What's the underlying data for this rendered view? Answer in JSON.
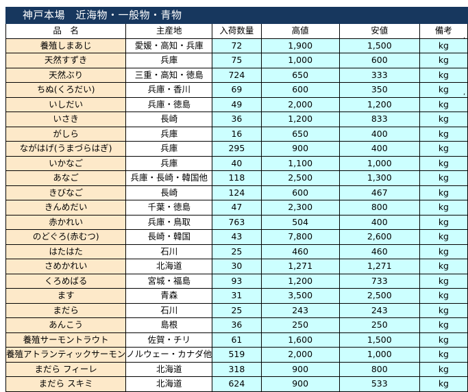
{
  "title": "神戸本場　近海物・一般物・青物",
  "headers": [
    "品　名",
    "主産地",
    "入荷数量",
    "高値",
    "安値",
    "備考"
  ],
  "rows": [
    {
      "name": "養殖しまあじ",
      "origin": "愛媛・高知・兵庫",
      "qty": "72",
      "high": "1,900",
      "low": "1,500",
      "note": "kg"
    },
    {
      "name": "天然すずき",
      "origin": "兵庫",
      "qty": "75",
      "high": "1,000",
      "low": "600",
      "note": "kg"
    },
    {
      "name": "天然ぶり",
      "origin": "三重・高知・徳島",
      "qty": "724",
      "high": "650",
      "low": "333",
      "note": "kg"
    },
    {
      "name": "ちぬ(くろだい)",
      "origin": "兵庫・香川",
      "qty": "69",
      "high": "600",
      "low": "350",
      "note": "kg"
    },
    {
      "name": "いしだい",
      "origin": "兵庫・徳島",
      "qty": "49",
      "high": "2,000",
      "low": "1,200",
      "note": "kg"
    },
    {
      "name": "いさき",
      "origin": "長崎",
      "qty": "36",
      "high": "1,200",
      "low": "833",
      "note": "kg"
    },
    {
      "name": "がしら",
      "origin": "兵庫",
      "qty": "16",
      "high": "650",
      "low": "400",
      "note": "kg"
    },
    {
      "name": "ながはげ(うまづらはぎ)",
      "origin": "兵庫",
      "qty": "295",
      "high": "900",
      "low": "400",
      "note": "kg"
    },
    {
      "name": "いかなご",
      "origin": "兵庫",
      "qty": "40",
      "high": "1,100",
      "low": "1,000",
      "note": "kg"
    },
    {
      "name": "あなご",
      "origin": "兵庫・長崎・韓国他",
      "qty": "118",
      "high": "2,500",
      "low": "1,300",
      "note": "kg"
    },
    {
      "name": "きびなご",
      "origin": "長崎",
      "qty": "124",
      "high": "600",
      "low": "467",
      "note": "kg"
    },
    {
      "name": "きんめだい",
      "origin": "千葉・徳島",
      "qty": "47",
      "high": "2,300",
      "low": "800",
      "note": "kg"
    },
    {
      "name": "赤かれい",
      "origin": "兵庫・鳥取",
      "qty": "763",
      "high": "504",
      "low": "400",
      "note": "kg"
    },
    {
      "name": "のどぐろ(赤むつ)",
      "origin": "長崎・韓国",
      "qty": "43",
      "high": "7,800",
      "low": "2,600",
      "note": "kg"
    },
    {
      "name": "はたはた",
      "origin": "石川",
      "qty": "25",
      "high": "460",
      "low": "460",
      "note": "kg"
    },
    {
      "name": "さめかれい",
      "origin": "北海道",
      "qty": "30",
      "high": "1,271",
      "low": "1,271",
      "note": "kg"
    },
    {
      "name": "くろめばる",
      "origin": "宮城・福島",
      "qty": "93",
      "high": "1,200",
      "low": "733",
      "note": "kg"
    },
    {
      "name": "ます",
      "origin": "青森",
      "qty": "31",
      "high": "3,500",
      "low": "2,500",
      "note": "kg"
    },
    {
      "name": "まだら",
      "origin": "石川",
      "qty": "25",
      "high": "243",
      "low": "243",
      "note": "kg"
    },
    {
      "name": "あんこう",
      "origin": "島根",
      "qty": "36",
      "high": "250",
      "low": "250",
      "note": "kg"
    },
    {
      "name": "養殖サーモントラウト",
      "origin": "佐賀・チリ",
      "qty": "61",
      "high": "1,600",
      "low": "1,500",
      "note": "kg"
    },
    {
      "name": "養殖アトランティックサーモン",
      "origin": "ノルウェー・カナダ他",
      "qty": "519",
      "high": "2,000",
      "low": "1,000",
      "note": "kg"
    },
    {
      "name": "まだら フィーレ",
      "origin": "北海道",
      "qty": "318",
      "high": "900",
      "low": "800",
      "note": "kg"
    },
    {
      "name": "まだら スキミ",
      "origin": "北海道",
      "qty": "624",
      "high": "900",
      "low": "533",
      "note": "kg"
    }
  ],
  "colors": {
    "title_bg": "#17375e",
    "title_fg": "#ffffff",
    "name_bg": "#fde9c9",
    "number_bg": "#ccffff",
    "origin_bg": "#ffffff"
  }
}
